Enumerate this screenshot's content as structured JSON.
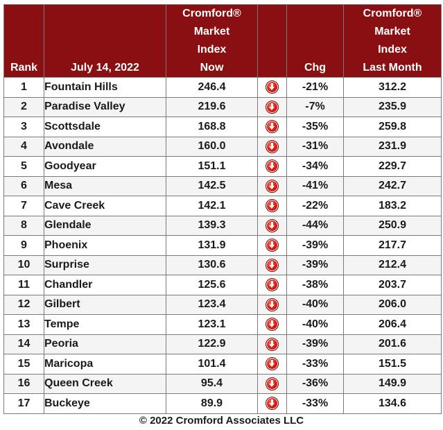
{
  "headers": {
    "rank": "Rank",
    "date": "July 14, 2022",
    "now": [
      "Cromford®",
      "Market",
      "Index",
      "Now"
    ],
    "chg": "Chg",
    "last_month": [
      "Cromford®",
      "Market",
      "Index",
      "Last Month"
    ]
  },
  "rows": [
    {
      "rank": "1",
      "city": "Fountain Hills",
      "now": "246.4",
      "chg": "-21%",
      "last": "312.2"
    },
    {
      "rank": "2",
      "city": "Paradise Valley",
      "now": "219.6",
      "chg": "-7%",
      "last": "235.9"
    },
    {
      "rank": "3",
      "city": "Scottsdale",
      "now": "168.8",
      "chg": "-35%",
      "last": "259.8"
    },
    {
      "rank": "4",
      "city": "Avondale",
      "now": "160.0",
      "chg": "-31%",
      "last": "231.9"
    },
    {
      "rank": "5",
      "city": "Goodyear",
      "now": "151.1",
      "chg": "-34%",
      "last": "229.7"
    },
    {
      "rank": "6",
      "city": "Mesa",
      "now": "142.5",
      "chg": "-41%",
      "last": "242.7"
    },
    {
      "rank": "7",
      "city": "Cave Creek",
      "now": "142.1",
      "chg": "-22%",
      "last": "183.2"
    },
    {
      "rank": "8",
      "city": "Glendale",
      "now": "139.3",
      "chg": "-44%",
      "last": "250.9"
    },
    {
      "rank": "9",
      "city": "Phoenix",
      "now": "131.9",
      "chg": "-39%",
      "last": "217.7"
    },
    {
      "rank": "10",
      "city": "Surprise",
      "now": "130.6",
      "chg": "-39%",
      "last": "212.4"
    },
    {
      "rank": "11",
      "city": "Chandler",
      "now": "125.6",
      "chg": "-38%",
      "last": "203.7"
    },
    {
      "rank": "12",
      "city": "Gilbert",
      "now": "123.4",
      "chg": "-40%",
      "last": "206.0"
    },
    {
      "rank": "13",
      "city": "Tempe",
      "now": "123.1",
      "chg": "-40%",
      "last": "206.4"
    },
    {
      "rank": "14",
      "city": "Peoria",
      "now": "122.9",
      "chg": "-39%",
      "last": "201.6"
    },
    {
      "rank": "15",
      "city": "Maricopa",
      "now": "101.4",
      "chg": "-33%",
      "last": "151.5"
    },
    {
      "rank": "16",
      "city": "Queen Creek",
      "now": "95.4",
      "chg": "-36%",
      "last": "149.9"
    },
    {
      "rank": "17",
      "city": "Buckeye",
      "now": "89.9",
      "chg": "-33%",
      "last": "134.6"
    }
  ],
  "trend_icon": "down-arrow-icon",
  "colors": {
    "header_bg": "#8a0f12",
    "header_text": "#ffffff",
    "icon": "#e11d12"
  },
  "footer": "© 2022 Cromford Associates LLC"
}
